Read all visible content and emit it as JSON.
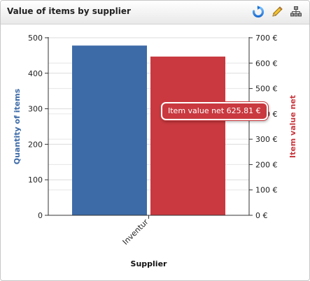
{
  "panel": {
    "title": "Value of items by supplier",
    "tools": [
      {
        "name": "refresh-icon"
      },
      {
        "name": "pencil-icon"
      },
      {
        "name": "sitemap-icon"
      }
    ]
  },
  "tooltip": {
    "label": "Item value net",
    "value": "625.81 €"
  },
  "chart_data": {
    "type": "bar",
    "categories": [
      "Inventur"
    ],
    "xlabel": "Supplier",
    "series": [
      {
        "name": "Quantity of items",
        "axis": "left",
        "values": [
          478
        ],
        "color": "#3d6ba8"
      },
      {
        "name": "Item value net",
        "axis": "right",
        "values": [
          625.81
        ],
        "color": "#c9393f"
      }
    ],
    "y_left": {
      "label": "Quantity of items",
      "min": 0,
      "max": 500,
      "ticks": [
        0,
        100,
        200,
        300,
        400,
        500
      ],
      "color": "#3d6ba8"
    },
    "y_right": {
      "label": "Item value net",
      "min": 0,
      "max": 700,
      "ticks": [
        0,
        100,
        200,
        300,
        400,
        500,
        600,
        700
      ],
      "unit": "€",
      "color": "#c9393f"
    },
    "grid": true,
    "legend": "none"
  }
}
